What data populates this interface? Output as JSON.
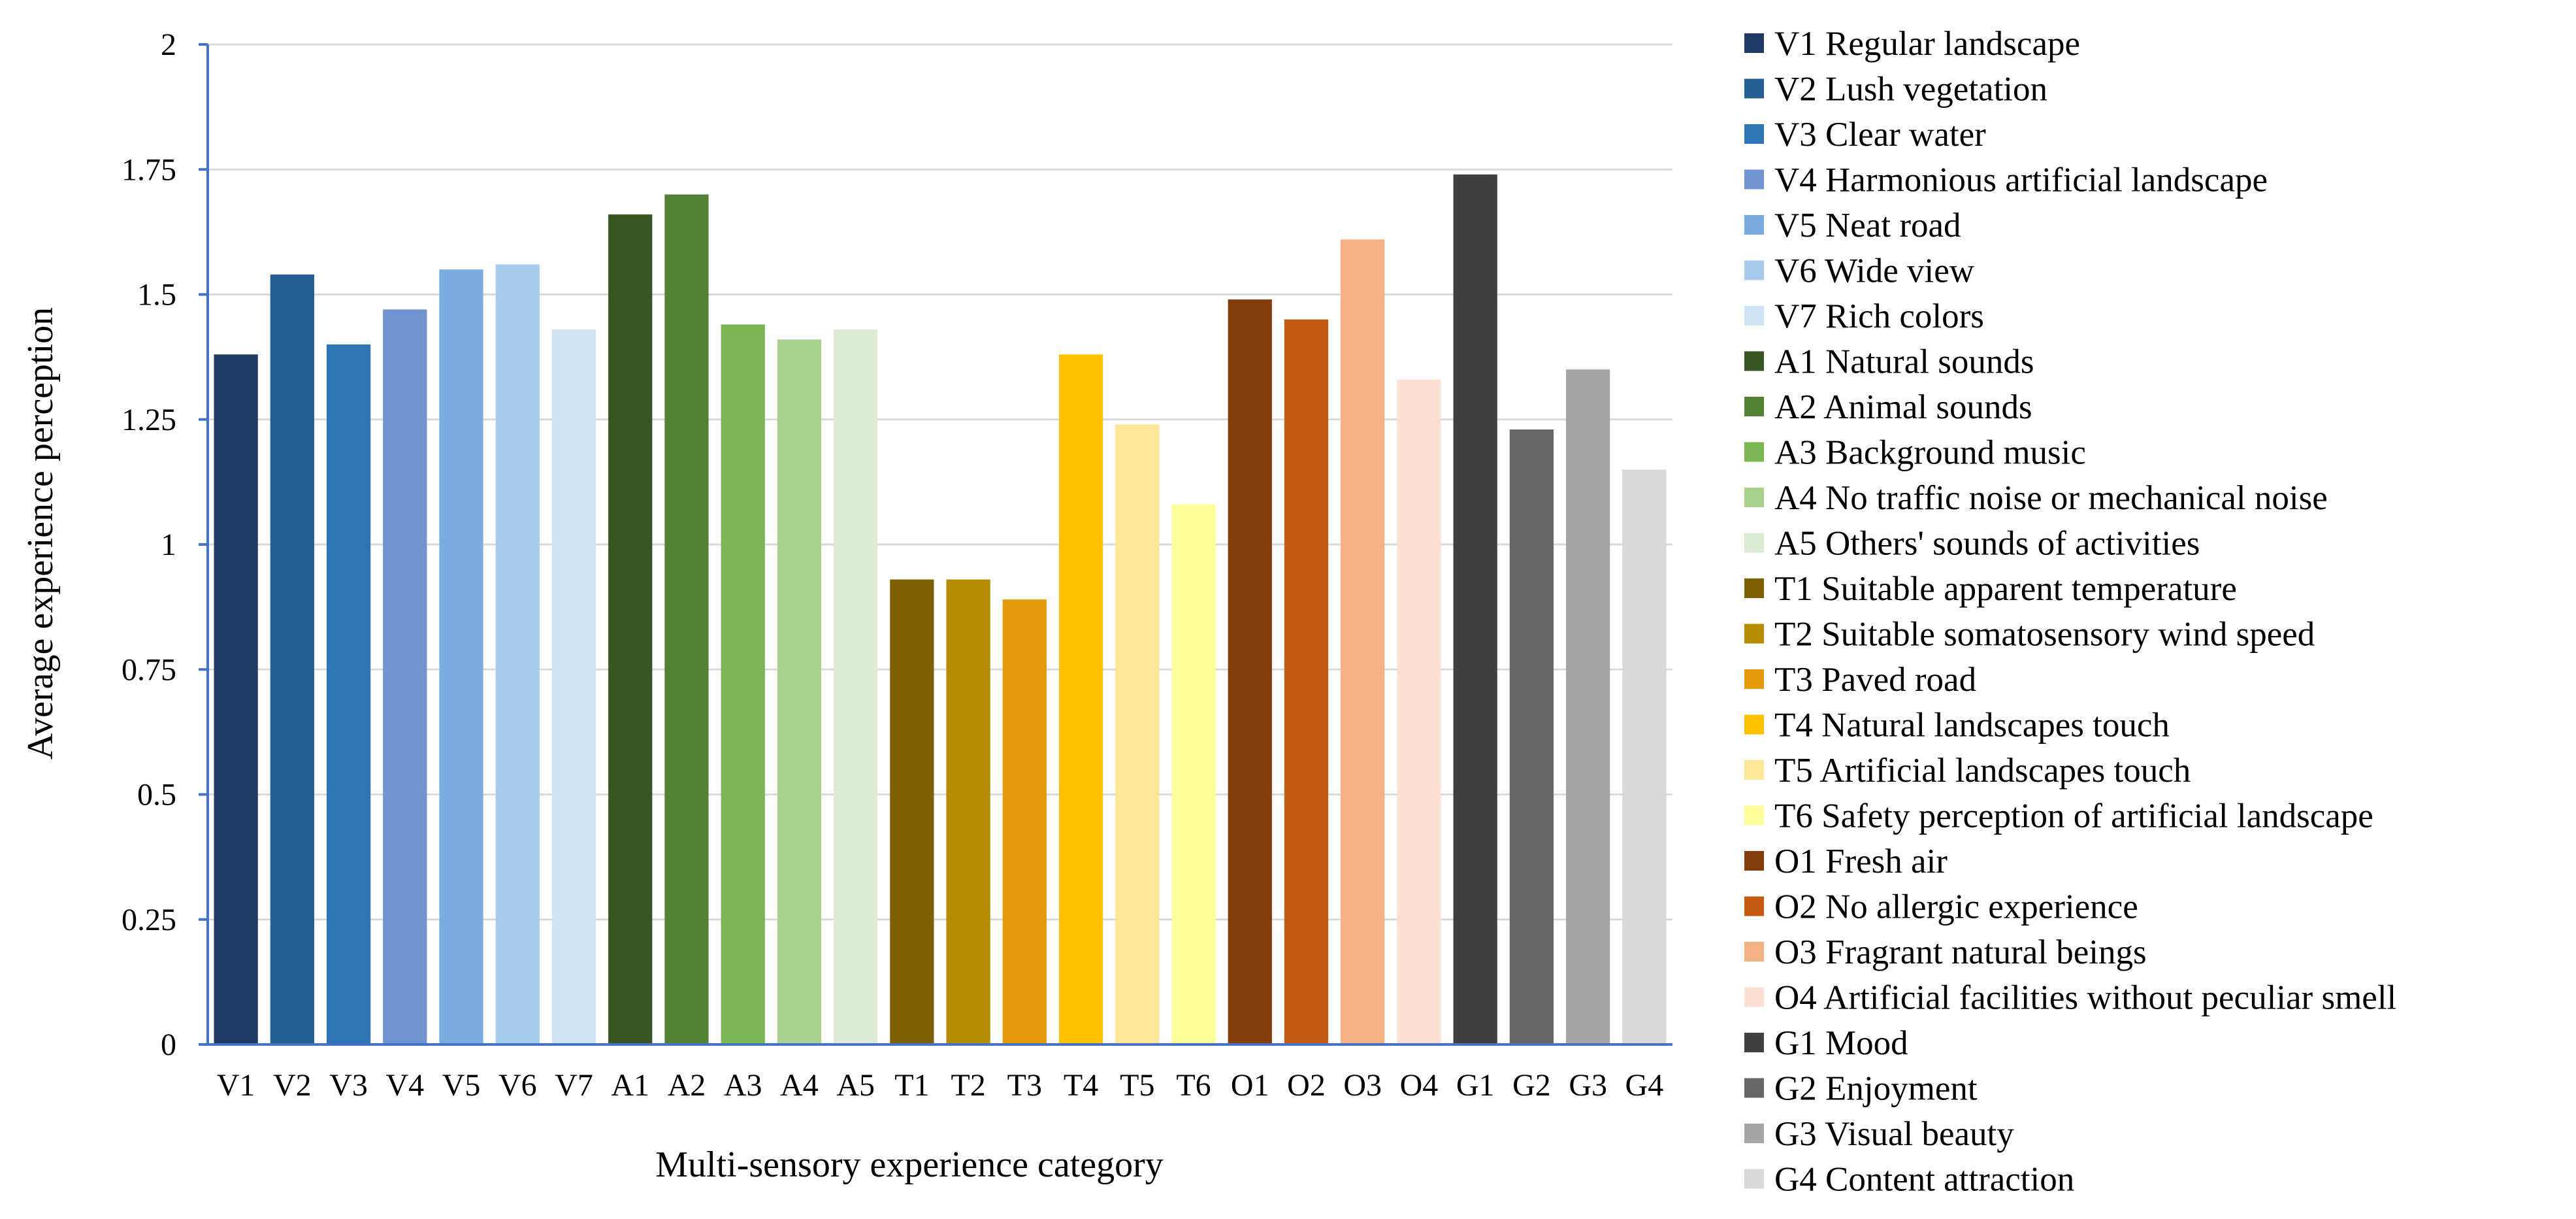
{
  "chart_data": {
    "type": "bar",
    "title": "",
    "xlabel": "Multi-sensory experience category",
    "ylabel": "Average experience perception",
    "ylim": [
      0,
      2
    ],
    "yticks": [
      "0",
      "0.25",
      "0.5",
      "0.75",
      "1",
      "1.25",
      "1.5",
      "1.75",
      "2"
    ],
    "grid": true,
    "legend_position": "right",
    "categories": [
      "V1",
      "V2",
      "V3",
      "V4",
      "V5",
      "V6",
      "V7",
      "A1",
      "A2",
      "A3",
      "A4",
      "A5",
      "T1",
      "T2",
      "T3",
      "T4",
      "T5",
      "T6",
      "O1",
      "O2",
      "O3",
      "O4",
      "G1",
      "G2",
      "G3",
      "G4"
    ],
    "values": [
      1.38,
      1.54,
      1.4,
      1.47,
      1.55,
      1.56,
      1.43,
      1.66,
      1.7,
      1.44,
      1.41,
      1.43,
      0.93,
      0.93,
      0.89,
      1.38,
      1.24,
      1.08,
      1.49,
      1.45,
      1.61,
      1.33,
      1.74,
      1.23,
      1.35,
      1.15
    ],
    "colors": [
      "#1f3864",
      "#255e91",
      "#2e75b6",
      "#7094d0",
      "#7aace0",
      "#a9cbeb",
      "#d0e3f4",
      "#375623",
      "#548235",
      "#7ab551",
      "#a9d18e",
      "#ddebd4",
      "#7f6000",
      "#b58b00",
      "#e59a0a",
      "#ffc000",
      "#ffe699",
      "#ffff99",
      "#843c0c",
      "#c55a11",
      "#f4b183",
      "#fbe0d3",
      "#404040",
      "#666666",
      "#a5a5a5",
      "#d9d9d9"
    ],
    "legend": [
      "V1 Regular landscape",
      "V2 Lush vegetation",
      "V3 Clear water",
      "V4 Harmonious artificial landscape",
      "V5 Neat road",
      "V6 Wide view",
      "V7 Rich colors",
      "A1 Natural sounds",
      "A2 Animal sounds",
      "A3 Background music",
      "A4 No traffic noise or mechanical noise",
      "A5 Others' sounds of activities",
      "T1 Suitable apparent temperature",
      "T2 Suitable somatosensory wind speed",
      "T3 Paved road",
      "T4 Natural landscapes touch",
      "T5 Artificial landscapes touch",
      "T6 Safety perception of artificial landscape",
      "O1 Fresh air",
      "O2 No allergic experience",
      "O3 Fragrant natural beings",
      "O4 Artificial facilities without peculiar smell",
      "G1 Mood",
      "G2 Enjoyment",
      "G3 Visual beauty",
      "G4 Content attraction"
    ]
  }
}
